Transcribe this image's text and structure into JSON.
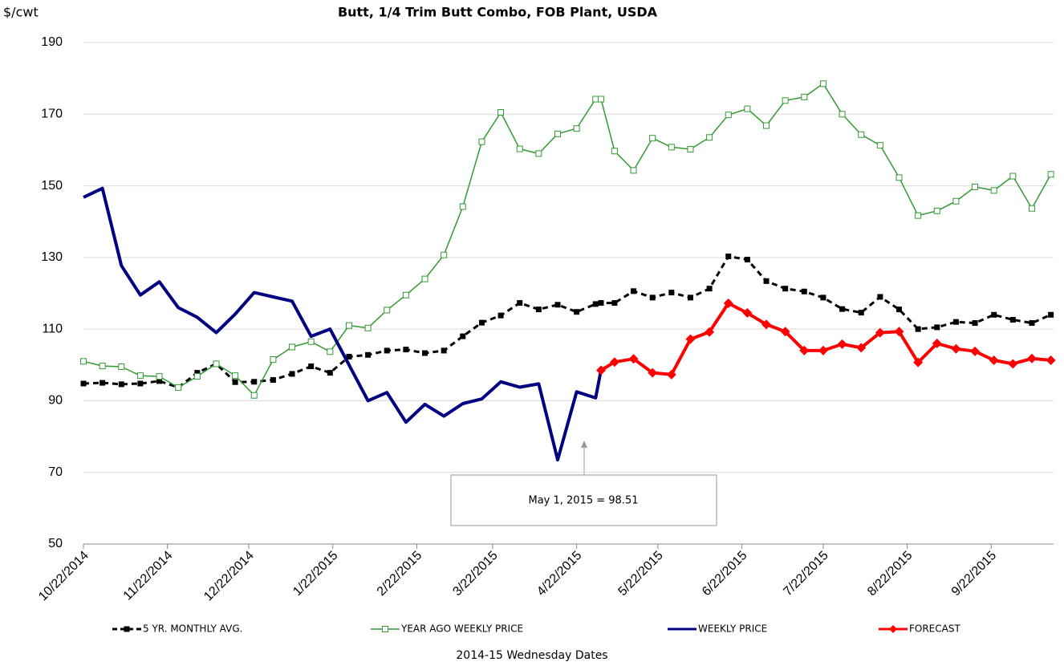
{
  "chart_data": {
    "type": "line",
    "title": "Butt, 1/4 Trim Butt Combo, FOB Plant, USDA",
    "y_axis_label": "$/cwt",
    "x_axis_label": "2014-15 Wednesday Dates",
    "annotation": "May 1, 2015  = 98.51",
    "grid": true,
    "legend": "bottom",
    "ylim": [
      50,
      190
    ],
    "yticks": [
      50,
      70,
      90,
      110,
      130,
      150,
      170,
      190
    ],
    "xlim": [
      "10/22/2014",
      "10/15/2015"
    ],
    "xticks": [
      "10/22/2014",
      "11/22/2014",
      "12/22/2014",
      "1/22/2015",
      "2/22/2015",
      "3/22/2015",
      "4/22/2015",
      "5/22/2015",
      "6/22/2015",
      "7/22/2015",
      "8/22/2015",
      "9/22/2015"
    ],
    "x": [
      "10/22/2014",
      "10/29/2014",
      "11/5/2014",
      "11/12/2014",
      "11/19/2014",
      "11/26/2014",
      "12/3/2014",
      "12/10/2014",
      "12/17/2014",
      "12/24/2014",
      "12/31/2014",
      "1/7/2015",
      "1/14/2015",
      "1/21/2015",
      "1/28/2015",
      "2/4/2015",
      "2/11/2015",
      "2/18/2015",
      "2/25/2015",
      "3/4/2015",
      "3/11/2015",
      "3/18/2015",
      "3/25/2015",
      "4/1/2015",
      "4/8/2015",
      "4/15/2015",
      "4/22/2015",
      "4/29/2015",
      "5/1/2015",
      "5/6/2015",
      "5/13/2015",
      "5/20/2015",
      "5/27/2015",
      "6/3/2015",
      "6/10/2015",
      "6/17/2015",
      "6/24/2015",
      "7/1/2015",
      "7/8/2015",
      "7/15/2015",
      "7/22/2015",
      "7/29/2015",
      "8/5/2015",
      "8/12/2015",
      "8/19/2015",
      "8/26/2015",
      "9/2/2015",
      "9/9/2015",
      "9/16/2015",
      "9/23/2015",
      "9/30/2015",
      "10/7/2015",
      "10/14/2015"
    ],
    "series": [
      {
        "name": "5 YR. MONTHLY AVG.",
        "color": "#000000",
        "line_style": "dashed",
        "marker": "square-filled",
        "values": [
          94.8,
          95,
          94.6,
          94.8,
          95.5,
          93.7,
          97.8,
          100.3,
          95.2,
          95.3,
          95.8,
          97.5,
          99.6,
          97.8,
          102.3,
          102.8,
          104,
          104.3,
          103.3,
          104,
          108,
          111.8,
          113.8,
          117.3,
          115.5,
          116.8,
          114.8,
          117,
          117.3,
          117.3,
          120.6,
          118.8,
          120.2,
          118.8,
          121.3,
          130.3,
          129.4,
          123.4,
          121.3,
          120.5,
          118.8,
          115.6,
          114.6,
          119,
          115.5,
          110,
          110.5,
          112,
          111.7,
          114,
          112.6,
          111.7,
          114
        ]
      },
      {
        "name": "YEAR AGO WEEKLY PRICE",
        "color": "#339933",
        "line_style": "solid",
        "marker": "square-open",
        "values": [
          101,
          99.7,
          99.5,
          97,
          96.8,
          93.7,
          96.8,
          100.3,
          97,
          91.5,
          101.5,
          105,
          106.5,
          103.7,
          111,
          110.3,
          115.3,
          119.5,
          124,
          130.7,
          144.2,
          162.3,
          170.5,
          160.3,
          159,
          164.5,
          166,
          174.2,
          174.2,
          159.7,
          154.3,
          163.3,
          160.8,
          160.2,
          163.5,
          169.8,
          171.5,
          166.8,
          173.8,
          174.8,
          178.5,
          170,
          164.3,
          161.3,
          152.3,
          141.7,
          143,
          145.7,
          149.7,
          148.7,
          152.7,
          143.7,
          153.2
        ]
      },
      {
        "name": "WEEKLY PRICE",
        "color": "#000080",
        "line_style": "solid",
        "marker": "none",
        "values": [
          146.8,
          149.3,
          127.7,
          119.5,
          123.2,
          116,
          113.3,
          109,
          114.2,
          120.2,
          119,
          117.8,
          108,
          110,
          100,
          90,
          92.3,
          84,
          89,
          85.7,
          89.2,
          90.5,
          95.3,
          93.8,
          94.7,
          73.5,
          92.5,
          90.8,
          98.51,
          null,
          null,
          null,
          null,
          null,
          null,
          null,
          null,
          null,
          null,
          null,
          null,
          null,
          null,
          null,
          null,
          null,
          null,
          null,
          null,
          null,
          null,
          null,
          null
        ]
      },
      {
        "name": "FORECAST",
        "color": "#ff0000",
        "line_style": "solid",
        "marker": "diamond",
        "values": [
          null,
          null,
          null,
          null,
          null,
          null,
          null,
          null,
          null,
          null,
          null,
          null,
          null,
          null,
          null,
          null,
          null,
          null,
          null,
          null,
          null,
          null,
          null,
          null,
          null,
          null,
          null,
          null,
          98.51,
          100.8,
          101.7,
          97.8,
          97.3,
          107.2,
          109.2,
          117.2,
          114.5,
          111.3,
          109.3,
          104,
          104,
          105.8,
          104.8,
          109,
          109.3,
          100.7,
          106,
          104.5,
          103.8,
          101.3,
          100.3,
          101.8,
          101.3
        ]
      }
    ]
  }
}
